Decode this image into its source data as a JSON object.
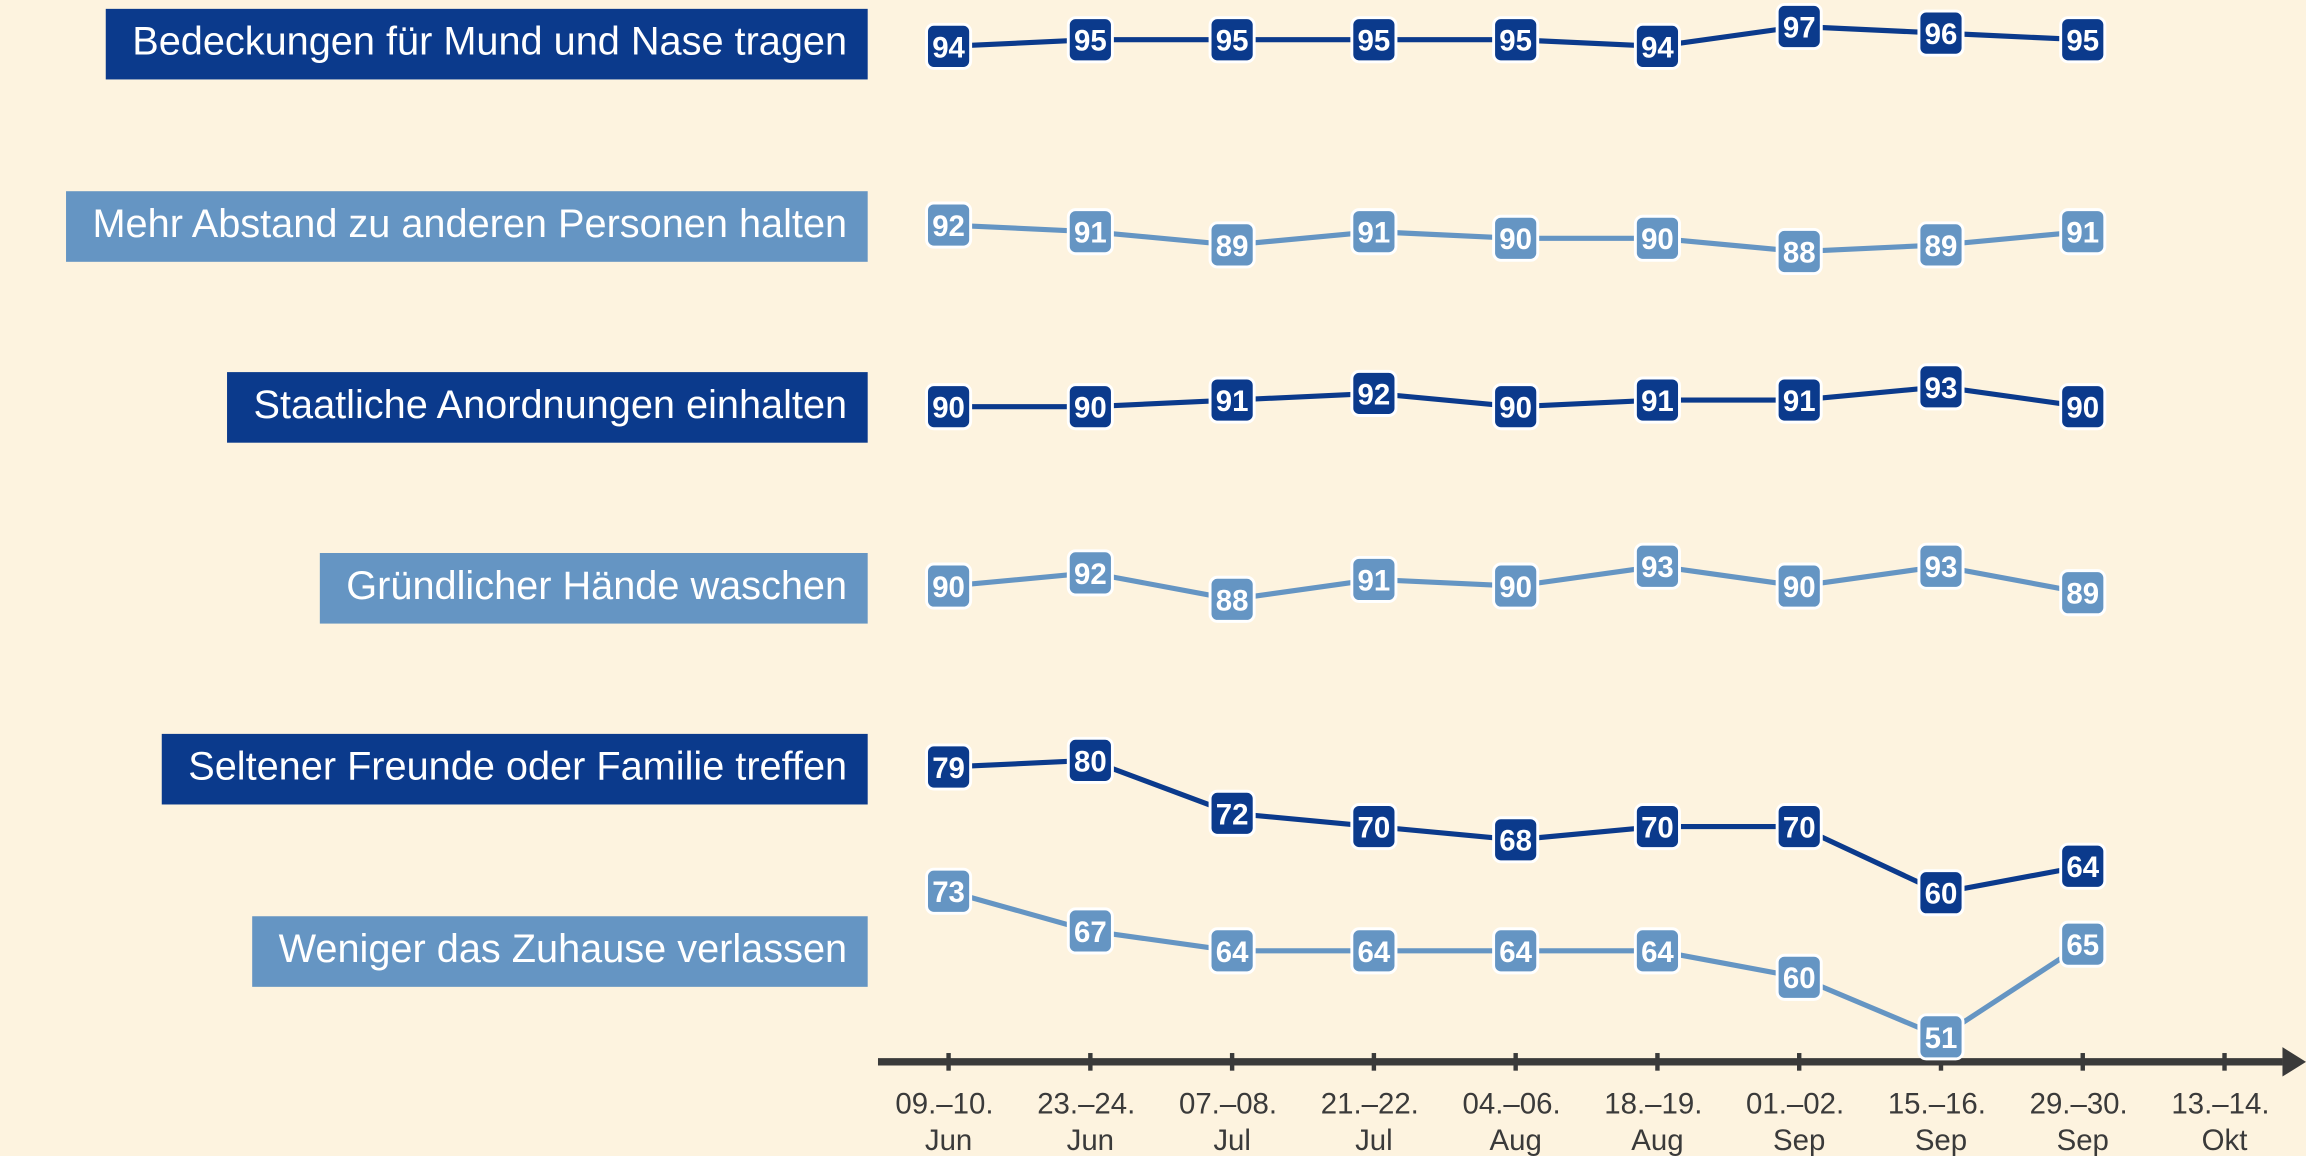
{
  "chart_data": {
    "type": "line",
    "categories": [
      "09.–10. Jun",
      "23.–24. Jun",
      "07.–08. Jul",
      "21.–22. Jul",
      "04.–06. Aug",
      "18.–19. Aug",
      "01.–02. Sep",
      "15.–16. Sep",
      "29.–30. Sep",
      "13.–14. Okt"
    ],
    "series": [
      {
        "name": "Bedeckungen für Mund und Nase tragen",
        "color": "#0b3a8c",
        "values": [
          94,
          95,
          95,
          95,
          95,
          94,
          97,
          96,
          95,
          null
        ]
      },
      {
        "name": "Mehr Abstand zu anderen Personen halten",
        "color": "#6595c3",
        "values": [
          92,
          91,
          89,
          91,
          90,
          90,
          88,
          89,
          91,
          null
        ]
      },
      {
        "name": "Staatliche Anordnungen einhalten",
        "color": "#0b3a8c",
        "values": [
          90,
          90,
          91,
          92,
          90,
          91,
          91,
          93,
          90,
          null
        ]
      },
      {
        "name": "Gründlicher Hände waschen",
        "color": "#6595c3",
        "values": [
          90,
          92,
          88,
          91,
          90,
          93,
          90,
          93,
          89,
          null
        ]
      },
      {
        "name": "Seltener Freunde oder Familie treffen",
        "color": "#0b3a8c",
        "values": [
          79,
          80,
          72,
          70,
          68,
          70,
          70,
          60,
          64,
          null
        ]
      },
      {
        "name": "Weniger das Zuhause verlassen",
        "color": "#6595c3",
        "values": [
          73,
          67,
          64,
          64,
          64,
          64,
          60,
          51,
          65,
          null
        ]
      }
    ]
  }
}
